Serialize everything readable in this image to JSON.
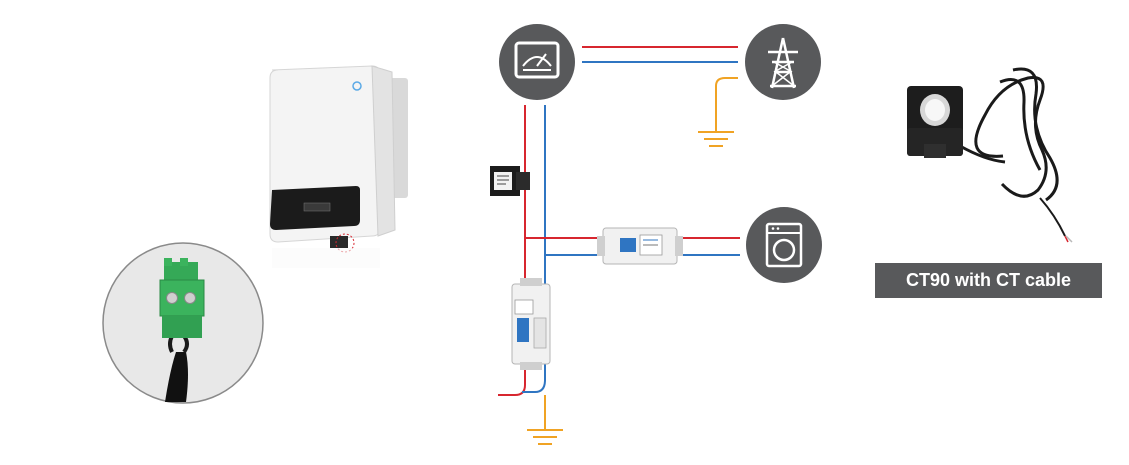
{
  "ct_product": {
    "label": "CT90 with CT cable"
  },
  "icons": {
    "meter": "meter-icon",
    "grid": "power-tower-icon",
    "load": "washing-machine-icon",
    "ground": "ground-icon"
  },
  "colors": {
    "live_wire": "#d7262f",
    "neutral_wire": "#2f75c2",
    "ground_wire": "#f0a324",
    "icon_circle": "#58595b",
    "label_bg": "#58595b"
  }
}
